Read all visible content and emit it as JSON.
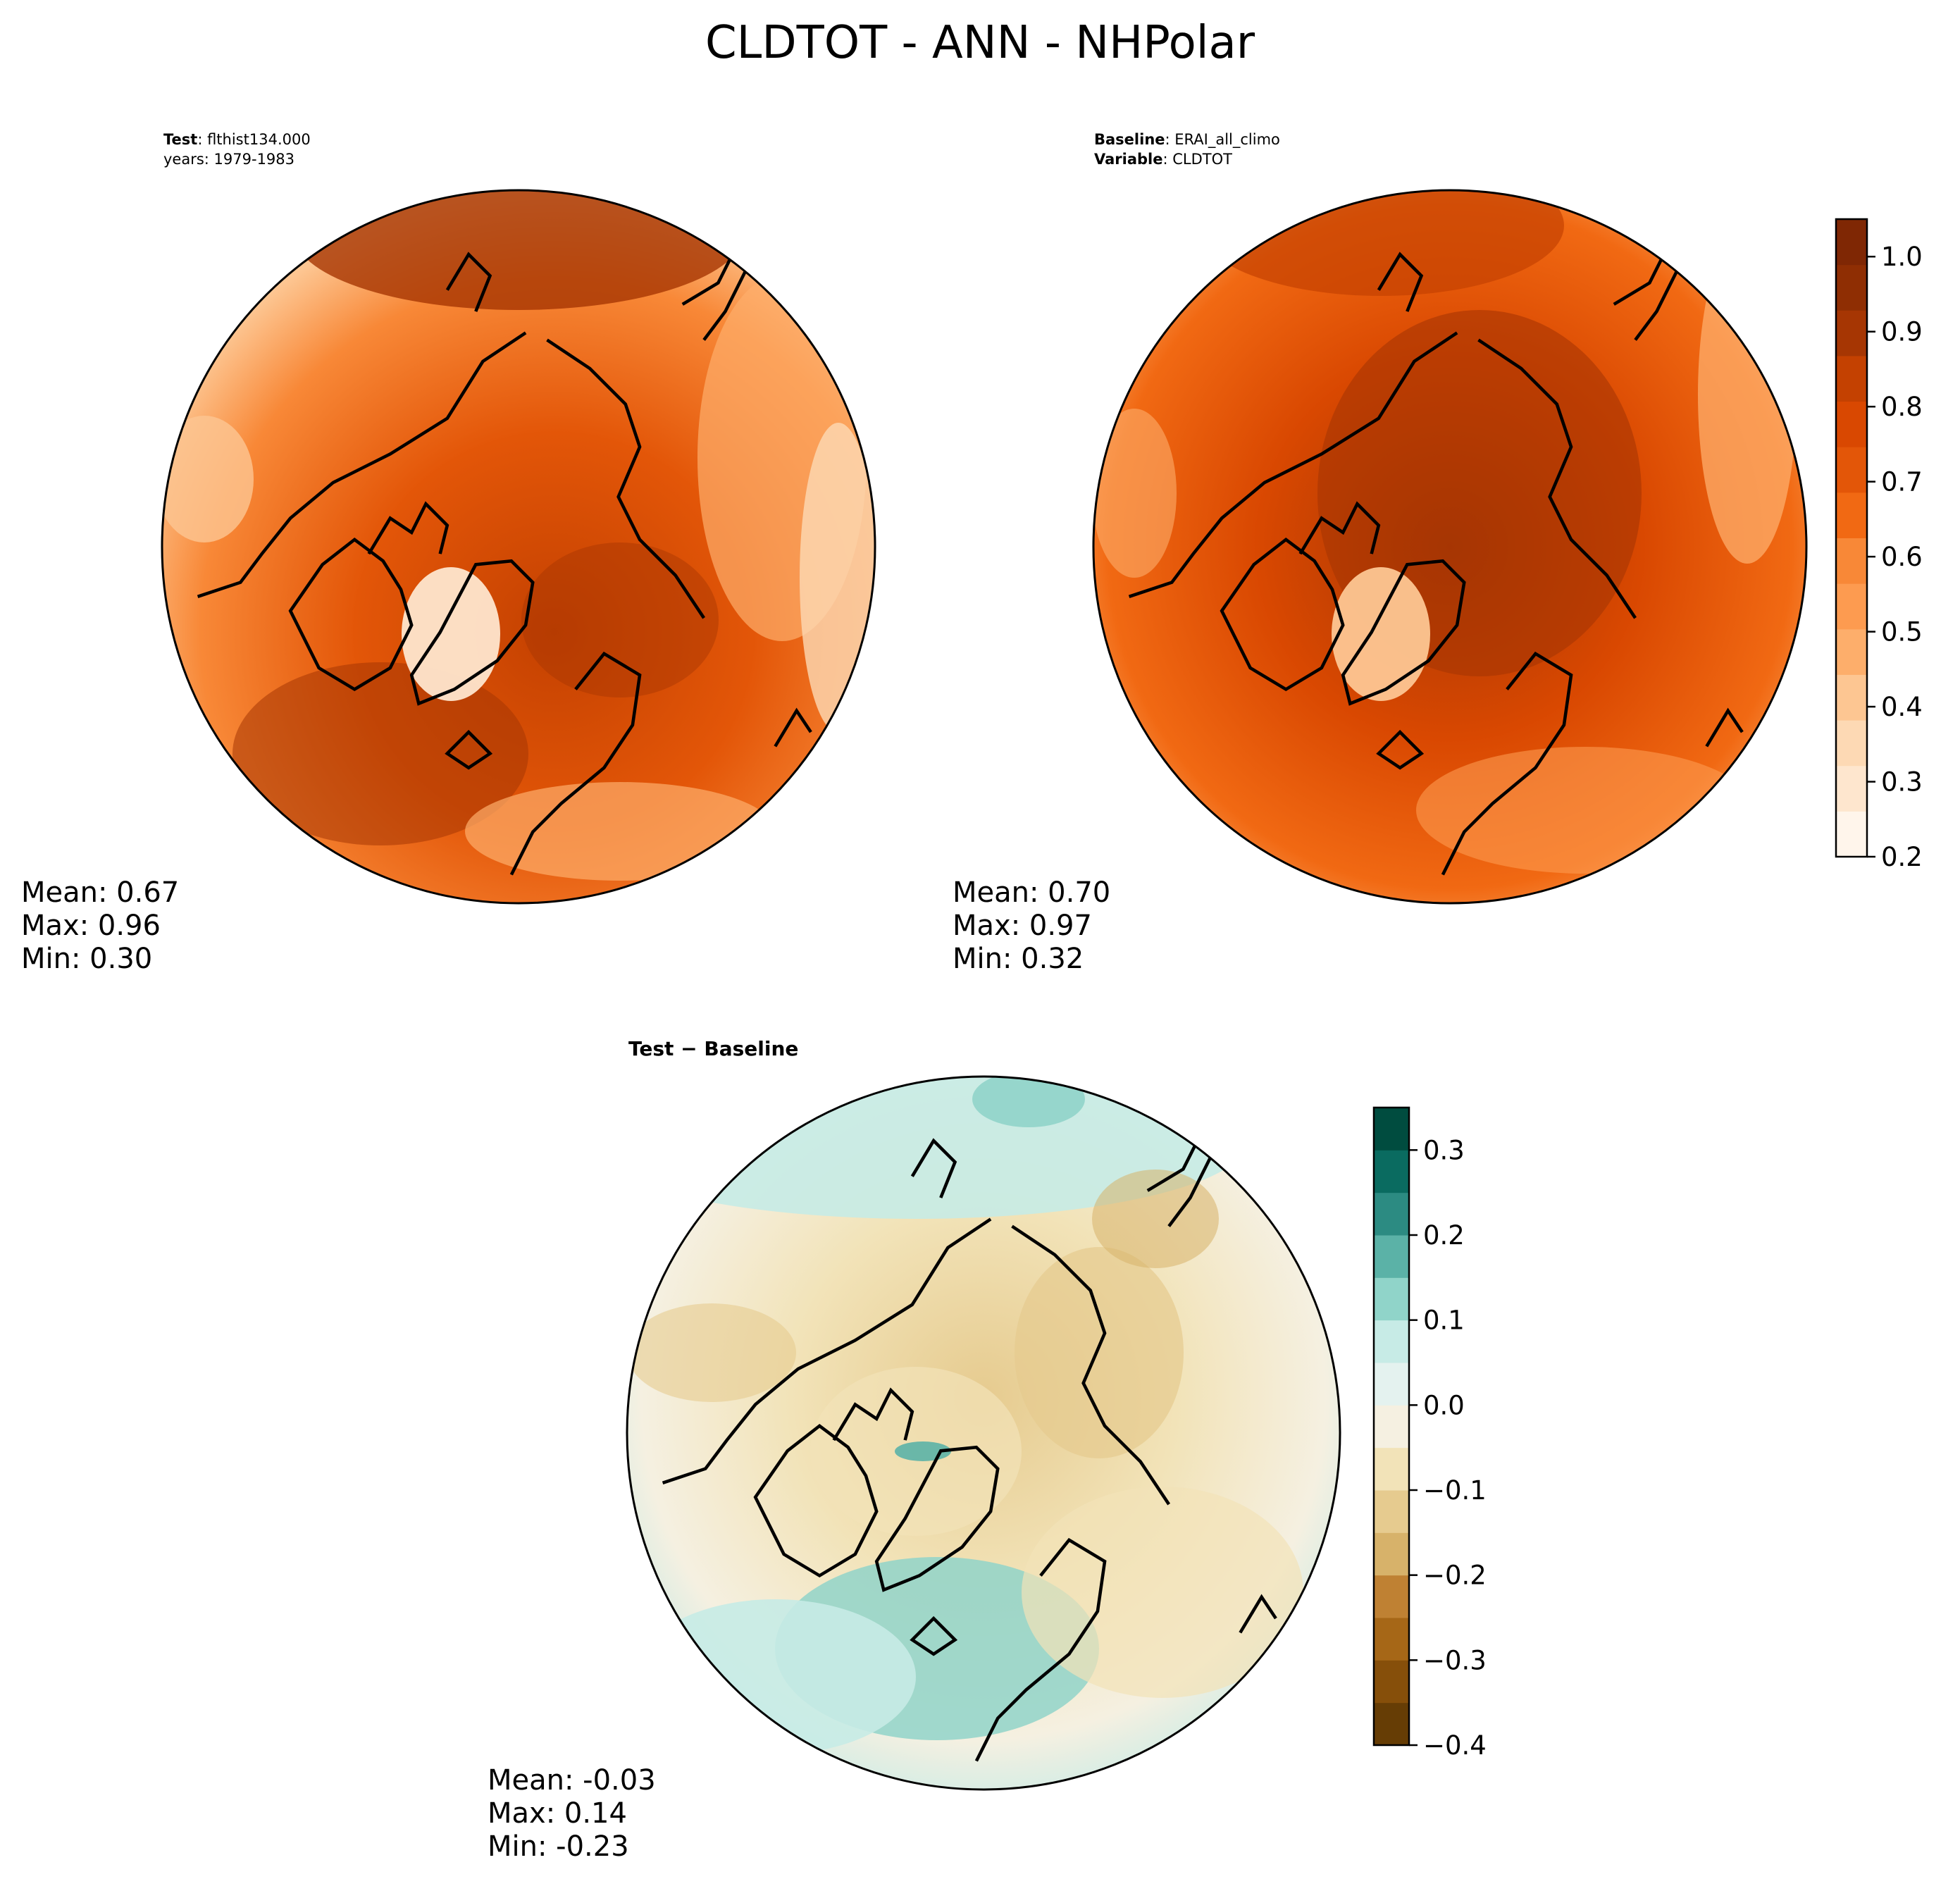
{
  "figure": {
    "title": "CLDTOT - ANN - NHPolar"
  },
  "panels": [
    {
      "id": "test",
      "header": [
        {
          "bold": "Test",
          "rest": ": flthist134.000"
        },
        {
          "bold": "",
          "rest": "years: 1979-1983"
        }
      ],
      "stats": [
        "Mean:  0.67",
        "Max:  0.96",
        "Min:  0.30"
      ],
      "stat_values": {
        "mean": 0.67,
        "max": 0.96,
        "min": 0.3
      }
    },
    {
      "id": "baseline",
      "header": [
        {
          "bold": "Baseline",
          "rest": ": ERAI_all_climo"
        },
        {
          "bold": "Variable",
          "rest": ": CLDTOT"
        }
      ],
      "stats": [
        "Mean:  0.70",
        "Max:  0.97",
        "Min:  0.32"
      ],
      "stat_values": {
        "mean": 0.7,
        "max": 0.97,
        "min": 0.32
      }
    },
    {
      "id": "diff",
      "header": [
        {
          "bold": "Test − Baseline",
          "rest": ""
        }
      ],
      "stats": [
        "Mean: -0.03",
        "Max:  0.14",
        "Min: -0.23"
      ],
      "stat_values": {
        "mean": -0.03,
        "max": 0.14,
        "min": -0.23
      }
    }
  ],
  "colorbars": {
    "field": {
      "range": [
        0.2,
        1.05
      ],
      "tick_values": [
        0.2,
        0.3,
        0.4,
        0.5,
        0.6,
        0.7,
        0.8,
        0.9,
        1.0
      ],
      "tick_labels": [
        "0.2",
        "0.3",
        "0.4",
        "0.5",
        "0.6",
        "0.7",
        "0.8",
        "0.9",
        "1.0"
      ],
      "colors": [
        "#fff5eb",
        "#fee6ce",
        "#fdd9b4",
        "#fdc692",
        "#fdae6b",
        "#fd9b50",
        "#f88837",
        "#f16913",
        "#e35608",
        "#d94801",
        "#c44101",
        "#a63603",
        "#8f2e03",
        "#7f2704"
      ]
    },
    "diff": {
      "range": [
        -0.4,
        0.35
      ],
      "tick_values": [
        -0.4,
        -0.3,
        -0.2,
        -0.1,
        0.0,
        0.1,
        0.2,
        0.3
      ],
      "tick_labels": [
        "−0.4",
        "−0.3",
        "−0.2",
        "−0.1",
        "0.0",
        "0.1",
        "0.2",
        "0.3"
      ],
      "colors": [
        "#663d05",
        "#864f0a",
        "#a66717",
        "#bf8133",
        "#d7b26a",
        "#e6cb8f",
        "#f2e3b8",
        "#f5f0e1",
        "#e4f2ef",
        "#c7ebe6",
        "#90d4c9",
        "#5bb2a7",
        "#2c8b82",
        "#0a6b60",
        "#004c3f"
      ]
    }
  },
  "colors": {
    "coastline": "#000000",
    "outline": "#000000"
  }
}
